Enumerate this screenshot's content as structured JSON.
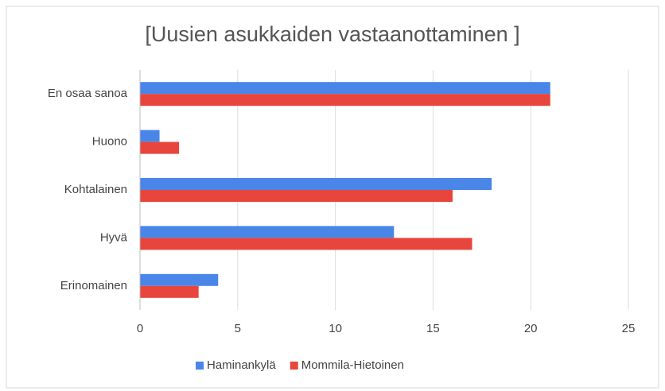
{
  "chart_data": {
    "type": "bar",
    "orientation": "horizontal",
    "title": "[Uusien asukkaiden vastaanottaminen ]",
    "categories": [
      "En osaa sanoa",
      "Huono",
      "Kohtalainen",
      "Hyvä",
      "Erinomainen"
    ],
    "series": [
      {
        "name": "Haminankylä",
        "color": "#4a86e8",
        "values": [
          21,
          1,
          18,
          13,
          4
        ]
      },
      {
        "name": "Mommila-Hietoinen",
        "color": "#e8453c",
        "values": [
          21,
          2,
          16,
          17,
          3
        ]
      }
    ],
    "xlim": [
      0,
      25
    ],
    "xticks": [
      0,
      5,
      10,
      15,
      20,
      25
    ],
    "grid": true,
    "legend": "bottom"
  }
}
